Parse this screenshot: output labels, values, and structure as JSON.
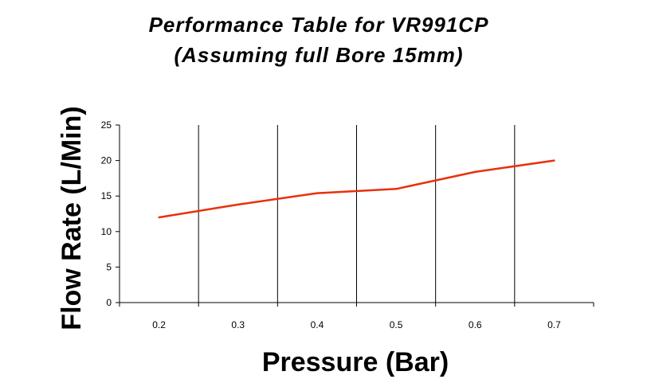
{
  "chart_data": {
    "type": "line",
    "title": "Performance Table for VR991CP",
    "subtitle": "(Assuming full Bore 15mm)",
    "xlabel": "Pressure (Bar)",
    "ylabel": "Flow Rate (L/Min)",
    "categories": [
      "0.2",
      "0.3",
      "0.4",
      "0.5",
      "0.6",
      "0.7"
    ],
    "values": [
      12,
      13.8,
      15.4,
      16,
      18.4,
      20
    ],
    "ylim": [
      0,
      25
    ],
    "yticks": [
      "0",
      "5",
      "10",
      "15",
      "20",
      "25"
    ],
    "grid": "vertical",
    "legend": "none",
    "line_color": "#e8300c"
  }
}
